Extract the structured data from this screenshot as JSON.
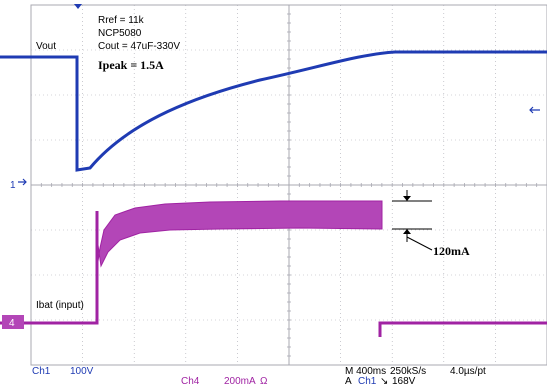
{
  "annotations": {
    "rref": "Rref = 11k",
    "part": "NCP5080",
    "cout": "Cout = 47uF-330V",
    "ipeak": "Ipeak = 1.5A",
    "delta_current": "120mA"
  },
  "channels": {
    "ch1_name": "Vout",
    "ch1_marker": "1",
    "ch4_name": "Ibat (input)",
    "ch4_marker": "4"
  },
  "status_bar": {
    "ch1_label": "Ch1",
    "ch1_scale": "100V",
    "ch4_label": "Ch4",
    "ch4_scale": "200mA",
    "ch4_unit": "Ω",
    "timebase": "M 400ms",
    "sample_rate": "250kS/s",
    "resolution": "4.0µs/pt",
    "trigger_prefix": "A",
    "trigger_source": "Ch1",
    "trigger_slope": "↘",
    "trigger_level": "168V"
  },
  "colors": {
    "grid": "#a9a9b2",
    "ch1_trace": "#1f3bb3",
    "ch4_trace": "#a023a3",
    "ch4_fill": "#b346b7",
    "background": "#ffffff"
  }
}
